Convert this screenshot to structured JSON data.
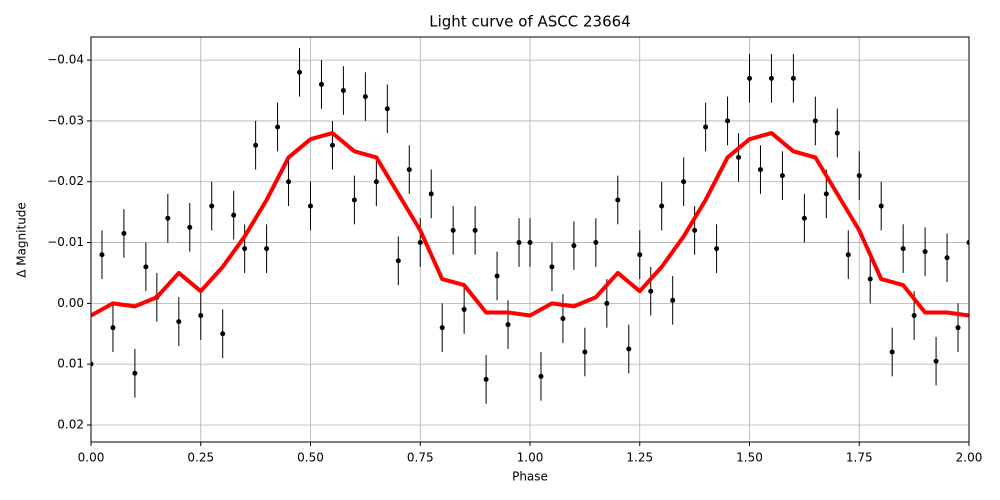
{
  "chart_data": {
    "type": "line",
    "title": "Light curve of ASCC 23664",
    "xlabel": "Phase",
    "ylabel": "Δ Magnitude",
    "xlim": [
      0,
      2
    ],
    "ylim": [
      -0.0438,
      0.0228
    ],
    "invert_y": true,
    "grid": true,
    "xticks": [
      {
        "value": 0,
        "label": "0.00"
      },
      {
        "value": 0.25,
        "label": "0.25"
      },
      {
        "value": 0.5,
        "label": "0.50"
      },
      {
        "value": 0.75,
        "label": "0.75"
      },
      {
        "value": 1,
        "label": "1.00"
      },
      {
        "value": 1.25,
        "label": "1.25"
      },
      {
        "value": 1.5,
        "label": "1.50"
      },
      {
        "value": 1.75,
        "label": "1.75"
      },
      {
        "value": 2,
        "label": "2.00"
      }
    ],
    "yticks": [
      {
        "value": -0.04,
        "label": "−0.04"
      },
      {
        "value": -0.03,
        "label": "−0.03"
      },
      {
        "value": -0.02,
        "label": "−0.02"
      },
      {
        "value": -0.01,
        "label": "−0.01"
      },
      {
        "value": 0,
        "label": "0.00"
      },
      {
        "value": 0.01,
        "label": "0.01"
      },
      {
        "value": 0.02,
        "label": "0.02"
      }
    ],
    "series": [
      {
        "type": "errorbar",
        "color": "#000000",
        "yerr": 0.004,
        "x": [
          0,
          0.025,
          0.05,
          0.075,
          0.1,
          0.125,
          0.15,
          0.175,
          0.2,
          0.225,
          0.25,
          0.275,
          0.3,
          0.325,
          0.35,
          0.375,
          0.4,
          0.425,
          0.45,
          0.475,
          0.5,
          0.525,
          0.55,
          0.575,
          0.6,
          0.625,
          0.65,
          0.675,
          0.7,
          0.725,
          0.75,
          0.775,
          0.8,
          0.825,
          0.85,
          0.875,
          0.9,
          0.925,
          0.95,
          0.975,
          1,
          1.025,
          1.05,
          1.075,
          1.1,
          1.125,
          1.15,
          1.175,
          1.2,
          1.225,
          1.25,
          1.275,
          1.3,
          1.325,
          1.35,
          1.375,
          1.4,
          1.425,
          1.45,
          1.475,
          1.5,
          1.525,
          1.55,
          1.575,
          1.6,
          1.625,
          1.65,
          1.675,
          1.7,
          1.725,
          1.75,
          1.775,
          1.8,
          1.825,
          1.85,
          1.875,
          1.9,
          1.925,
          1.95,
          1.975,
          2
        ],
        "values": [
          0.01,
          -0.008,
          0.004,
          -0.0115,
          0.0115,
          -0.006,
          -0.001,
          -0.014,
          0.003,
          -0.0125,
          0.002,
          -0.016,
          0.005,
          -0.0145,
          -0.009,
          -0.026,
          -0.009,
          -0.029,
          -0.02,
          -0.038,
          -0.016,
          -0.036,
          -0.026,
          -0.035,
          -0.017,
          -0.034,
          -0.02,
          -0.032,
          -0.007,
          -0.022,
          -0.01,
          -0.018,
          0.004,
          -0.012,
          0.001,
          -0.012,
          0.0125,
          -0.0045,
          0.0035,
          -0.01,
          -0.01,
          0.012,
          -0.006,
          0.0025,
          -0.0095,
          0.008,
          -0.01,
          0,
          -0.017,
          0.0075,
          -0.008,
          -0.002,
          -0.016,
          -0.0005,
          -0.02,
          -0.012,
          -0.029,
          -0.009,
          -0.03,
          -0.024,
          -0.037,
          -0.022,
          -0.037,
          -0.021,
          -0.037,
          -0.014,
          -0.03,
          -0.018,
          -0.028,
          -0.008,
          -0.021,
          -0.004,
          -0.016,
          0.008,
          -0.009,
          0.002,
          -0.0085,
          0.0095,
          -0.0075,
          0.004,
          -0.01
        ]
      },
      {
        "type": "line",
        "color": "#ff0000",
        "x": [
          0,
          0.05,
          0.1,
          0.15,
          0.2,
          0.25,
          0.3,
          0.35,
          0.4,
          0.45,
          0.5,
          0.55,
          0.6,
          0.65,
          0.7,
          0.75,
          0.8,
          0.85,
          0.9,
          0.95,
          1,
          1.05,
          1.1,
          1.15,
          1.2,
          1.25,
          1.3,
          1.35,
          1.4,
          1.45,
          1.5,
          1.55,
          1.6,
          1.65,
          1.7,
          1.75,
          1.8,
          1.85,
          1.9,
          1.95,
          2
        ],
        "values": [
          0.002,
          0,
          0.0005,
          -0.001,
          -0.005,
          -0.002,
          -0.006,
          -0.011,
          -0.017,
          -0.024,
          -0.027,
          -0.028,
          -0.025,
          -0.024,
          -0.018,
          -0.012,
          -0.004,
          -0.003,
          0.0015,
          0.0015,
          0.002,
          0,
          0.0005,
          -0.001,
          -0.005,
          -0.002,
          -0.006,
          -0.011,
          -0.017,
          -0.024,
          -0.027,
          -0.028,
          -0.025,
          -0.024,
          -0.018,
          -0.012,
          -0.004,
          -0.003,
          0.0015,
          0.0015,
          0.002
        ]
      }
    ]
  }
}
